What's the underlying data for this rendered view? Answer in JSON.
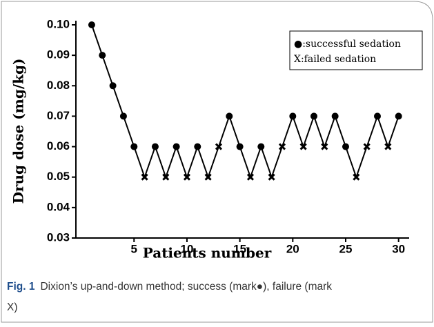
{
  "chart_data": {
    "type": "line",
    "x_label": "Patients number",
    "y_label": "Drug dose (mg/kg)",
    "legend": [
      "●:successful sedation",
      "X:failed sedation"
    ],
    "caption": {
      "label": "Fig. 1",
      "line1": "Dixion’s up-and-down method; success (mark●), failure (mark",
      "line2": "X)"
    },
    "x": [
      1,
      2,
      3,
      4,
      5,
      6,
      7,
      8,
      9,
      10,
      11,
      12,
      13,
      14,
      15,
      16,
      17,
      18,
      19,
      20,
      21,
      22,
      23,
      24,
      25,
      26,
      27,
      28,
      29,
      30
    ],
    "series": [
      {
        "color": "#000",
        "values": [
          0.1,
          0.09,
          0.08,
          0.07,
          0.06,
          0.05,
          0.06,
          0.05,
          0.06,
          0.05,
          0.06,
          0.05,
          0.06,
          0.07,
          0.06,
          0.05,
          0.06,
          0.05,
          0.06,
          0.07,
          0.06,
          0.07,
          0.06,
          0.07,
          0.06,
          0.05,
          0.06,
          0.07,
          0.06,
          0.07
        ],
        "markers": [
          "circle",
          "circle",
          "circle",
          "circle",
          "circle",
          "x",
          "circle",
          "x",
          "circle",
          "x",
          "circle",
          "x",
          "x",
          "circle",
          "circle",
          "x",
          "circle",
          "x",
          "x",
          "circle",
          "x",
          "circle",
          "x",
          "circle",
          "circle",
          "x",
          "x",
          "circle",
          "x",
          "circle"
        ]
      }
    ],
    "xlim": [
      0,
      31
    ],
    "xticks": [
      5,
      10,
      15,
      20,
      25,
      30
    ],
    "ylim": [
      0.03,
      0.1
    ],
    "yticks": [
      0.03,
      0.04,
      0.05,
      0.06,
      0.07,
      0.08,
      0.09,
      {
        "value": 0.1,
        "label": "0.10"
      }
    ]
  }
}
